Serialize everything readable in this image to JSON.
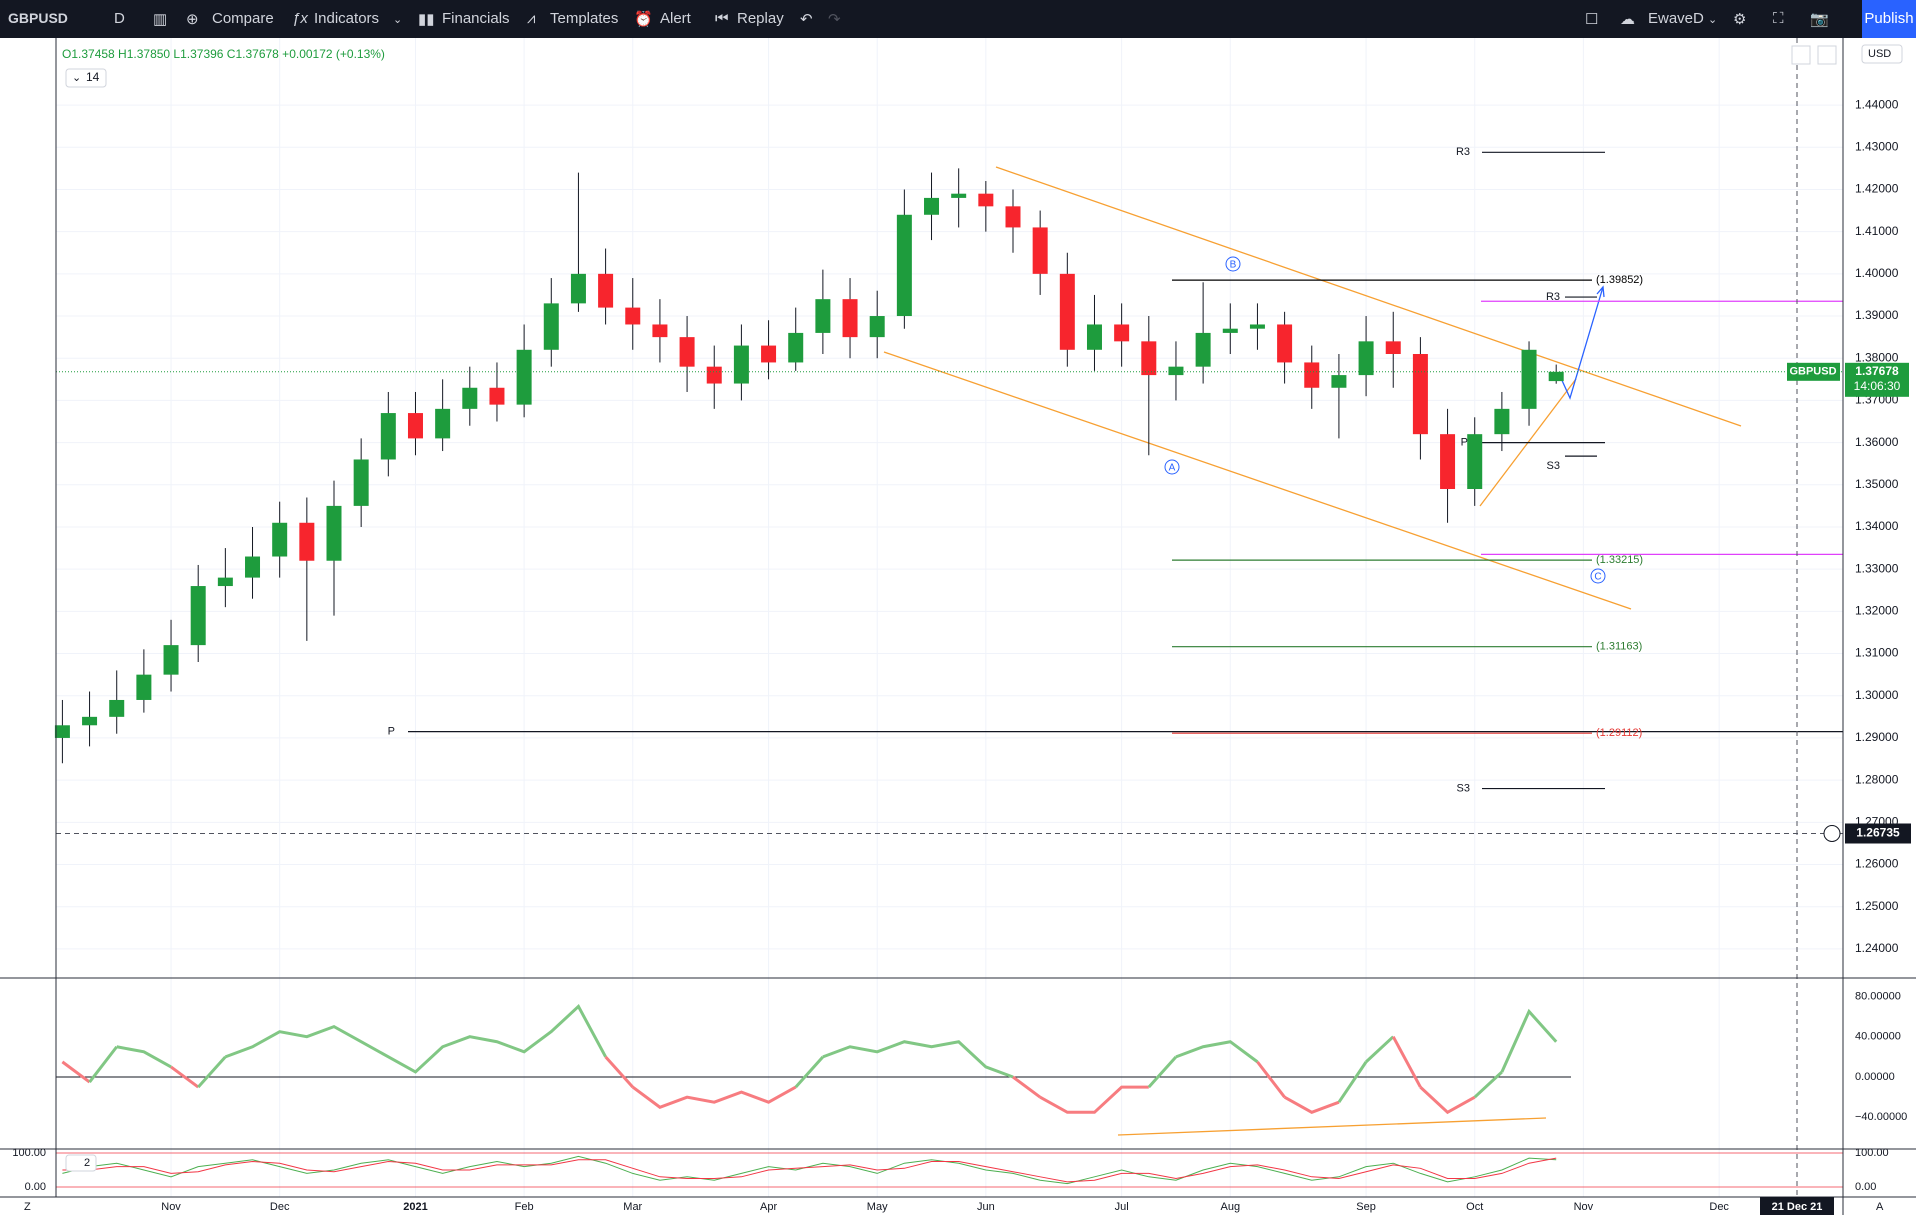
{
  "toolbar": {
    "symbol": "GBPUSD",
    "interval": "D",
    "compare": "Compare",
    "indicators": "Indicators",
    "financials": "Financials",
    "templates": "Templates",
    "alert": "Alert",
    "replay": "Replay",
    "layout": "EwaveD",
    "publish": "Publish",
    "currency": "USD"
  },
  "legend": {
    "ohlc": "O1.37458 H1.37850 L1.37396 C1.37678 +0.00172 (+0.13%)",
    "length": "14",
    "stoch_length": "2"
  },
  "chart_data": [
    {
      "type": "candlestick",
      "color_up": "#1e9c3d",
      "color_down": "#f7252d",
      "categories": [
        null,
        null,
        null,
        null,
        "Nov",
        null,
        null,
        null,
        "Dec",
        null,
        null,
        null,
        null,
        "2021",
        null,
        null,
        null,
        "Feb",
        null,
        null,
        null,
        "Mar",
        null,
        null,
        null,
        null,
        "Apr",
        null,
        null,
        null,
        "May",
        null,
        null,
        null,
        "Jun",
        null,
        null,
        null,
        null,
        "Jul",
        null,
        null,
        null,
        "Aug",
        null,
        null,
        null,
        null,
        "Sep",
        null,
        null,
        null,
        "Oct",
        null,
        null,
        null,
        "Nov",
        null,
        null,
        null,
        null,
        "Dec"
      ],
      "open": [
        1.29,
        1.293,
        1.295,
        1.299,
        1.305,
        1.312,
        1.326,
        1.328,
        1.333,
        1.341,
        1.332,
        1.345,
        1.356,
        1.367,
        1.361,
        1.368,
        1.373,
        1.369,
        1.382,
        1.393,
        1.4,
        1.392,
        1.388,
        1.385,
        1.378,
        1.374,
        1.383,
        1.379,
        1.386,
        1.394,
        1.385,
        1.39,
        1.414,
        1.418,
        1.419,
        1.416,
        1.411,
        1.4,
        1.382,
        1.388,
        1.384,
        1.376,
        1.378,
        1.386,
        1.387,
        1.388,
        1.379,
        1.373,
        1.376,
        1.384,
        1.381,
        1.362,
        1.349,
        1.362,
        1.368,
        1.37458,
        null,
        null,
        null,
        null,
        null,
        null
      ],
      "high": [
        1.299,
        1.301,
        1.306,
        1.311,
        1.318,
        1.331,
        1.335,
        1.34,
        1.346,
        1.347,
        1.351,
        1.361,
        1.372,
        1.372,
        1.375,
        1.378,
        1.379,
        1.388,
        1.399,
        1.424,
        1.406,
        1.399,
        1.394,
        1.39,
        1.383,
        1.388,
        1.389,
        1.392,
        1.401,
        1.399,
        1.396,
        1.42,
        1.424,
        1.425,
        1.422,
        1.42,
        1.415,
        1.405,
        1.395,
        1.393,
        1.39,
        1.384,
        1.398,
        1.393,
        1.393,
        1.391,
        1.383,
        1.381,
        1.39,
        1.391,
        1.385,
        1.368,
        1.366,
        1.372,
        1.384,
        1.3785,
        null,
        null,
        null,
        null,
        null,
        null
      ],
      "low": [
        1.284,
        1.288,
        1.291,
        1.296,
        1.301,
        1.308,
        1.321,
        1.323,
        1.328,
        1.313,
        1.319,
        1.34,
        1.352,
        1.357,
        1.358,
        1.364,
        1.365,
        1.366,
        1.378,
        1.391,
        1.388,
        1.382,
        1.379,
        1.372,
        1.368,
        1.37,
        1.375,
        1.377,
        1.381,
        1.38,
        1.38,
        1.387,
        1.408,
        1.411,
        1.41,
        1.405,
        1.395,
        1.378,
        1.377,
        1.378,
        1.357,
        1.37,
        1.374,
        1.381,
        1.382,
        1.374,
        1.368,
        1.361,
        1.371,
        1.373,
        1.356,
        1.341,
        1.345,
        1.358,
        1.364,
        1.37396,
        null,
        null,
        null,
        null,
        null,
        null
      ],
      "close": [
        1.293,
        1.295,
        1.299,
        1.305,
        1.312,
        1.326,
        1.328,
        1.333,
        1.341,
        1.332,
        1.345,
        1.356,
        1.367,
        1.361,
        1.368,
        1.373,
        1.369,
        1.382,
        1.393,
        1.4,
        1.392,
        1.388,
        1.385,
        1.378,
        1.374,
        1.383,
        1.379,
        1.386,
        1.394,
        1.385,
        1.39,
        1.414,
        1.418,
        1.419,
        1.416,
        1.411,
        1.4,
        1.382,
        1.388,
        1.384,
        1.376,
        1.378,
        1.386,
        1.387,
        1.388,
        1.379,
        1.373,
        1.376,
        1.384,
        1.381,
        1.362,
        1.349,
        1.362,
        1.368,
        1.382,
        1.37678,
        null,
        null,
        null,
        null,
        null,
        null
      ],
      "ylim": [
        1.2331,
        1.4559
      ],
      "yticks": [
        {
          "value": 1.24,
          "label": "1.24000"
        },
        {
          "value": 1.25,
          "label": "1.25000"
        },
        {
          "value": 1.26,
          "label": "1.26000"
        },
        {
          "value": 1.27,
          "label": "1.27000"
        },
        {
          "value": 1.28,
          "label": "1.28000"
        },
        {
          "value": 1.29,
          "label": "1.29000"
        },
        {
          "value": 1.3,
          "label": "1.30000"
        },
        {
          "value": 1.31,
          "label": "1.31000"
        },
        {
          "value": 1.32,
          "label": "1.32000"
        },
        {
          "value": 1.33,
          "label": "1.33000"
        },
        {
          "value": 1.34,
          "label": "1.34000"
        },
        {
          "value": 1.35,
          "label": "1.35000"
        },
        {
          "value": 1.36,
          "label": "1.36000"
        },
        {
          "value": 1.37,
          "label": "1.37000"
        },
        {
          "value": 1.38,
          "label": "1.38000"
        },
        {
          "value": 1.39,
          "label": "1.39000"
        },
        {
          "value": 1.4,
          "label": "1.40000"
        },
        {
          "value": 1.41,
          "label": "1.41000"
        },
        {
          "value": 1.42,
          "label": "1.42000"
        },
        {
          "value": 1.43,
          "label": "1.43000"
        },
        {
          "value": 1.44,
          "label": "1.44000"
        }
      ],
      "grid": true,
      "last_price": {
        "value": 1.37678,
        "label": "1.37678",
        "countdown": "14:06:30"
      },
      "crosshair": {
        "value": 1.26735,
        "label": "1.26735",
        "date": "21 Dec 21"
      },
      "levels": [
        {
          "value": 1.39852,
          "label": "(1.39852)",
          "color": "#000000"
        },
        {
          "value": 1.33215,
          "label": "(1.33215)",
          "color": "#2e7d32"
        },
        {
          "value": 1.31163,
          "label": "(1.31163)",
          "color": "#2e7d32"
        },
        {
          "value": 1.29112,
          "label": "(1.29112)",
          "color": "#e53935"
        }
      ],
      "pivots": [
        {
          "label": "R3",
          "value": 1.4288
        },
        {
          "label": "P",
          "value": 1.2915
        },
        {
          "label": "S3",
          "value": 1.278
        },
        {
          "label": "R3",
          "value": 1.3945
        },
        {
          "label": "S3",
          "value": 1.3568
        },
        {
          "label": "P",
          "value": 1.36
        }
      ],
      "hlines": [
        {
          "value": 1.3935,
          "color": "#e040fb"
        },
        {
          "value": 1.3335,
          "color": "#e040fb"
        }
      ],
      "waves": [
        "A",
        "B",
        "C"
      ]
    },
    {
      "type": "line",
      "color_up": "#81c784",
      "color_down": "#f77c80",
      "values": [
        15,
        -5,
        30,
        25,
        10,
        -10,
        20,
        30,
        45,
        40,
        50,
        35,
        20,
        5,
        30,
        40,
        35,
        25,
        45,
        70,
        20,
        -10,
        -30,
        -20,
        -25,
        -15,
        -25,
        -10,
        20,
        30,
        25,
        35,
        30,
        35,
        10,
        0,
        -20,
        -35,
        -35,
        -10,
        -10,
        20,
        30,
        35,
        15,
        -20,
        -35,
        -25,
        15,
        40,
        -10,
        -35,
        -20,
        5,
        65,
        35,
        null,
        null,
        null,
        null,
        null,
        null
      ],
      "ylim": [
        -71.4,
        98.2
      ],
      "yticks": [
        {
          "value": 80,
          "label": "80.00000"
        },
        {
          "value": 40,
          "label": "40.00000"
        },
        {
          "value": 0,
          "label": "0.00000"
        },
        {
          "value": -40,
          "label": "−40.00000"
        }
      ]
    },
    {
      "type": "line",
      "series": [
        {
          "color": "#4caf50",
          "values": [
            40,
            60,
            70,
            50,
            30,
            60,
            70,
            80,
            60,
            40,
            50,
            70,
            80,
            60,
            40,
            60,
            75,
            60,
            70,
            90,
            70,
            40,
            20,
            30,
            20,
            40,
            60,
            50,
            70,
            60,
            40,
            70,
            80,
            70,
            50,
            40,
            20,
            10,
            30,
            50,
            30,
            20,
            50,
            70,
            60,
            40,
            20,
            30,
            60,
            70,
            40,
            15,
            30,
            50,
            85,
            80,
            null,
            null,
            null,
            null,
            null,
            null
          ]
        },
        {
          "color": "#f23645",
          "values": [
            50,
            50,
            60,
            60,
            40,
            45,
            65,
            75,
            70,
            50,
            45,
            60,
            75,
            70,
            50,
            50,
            65,
            65,
            65,
            80,
            80,
            55,
            30,
            25,
            25,
            30,
            50,
            55,
            60,
            65,
            50,
            55,
            75,
            75,
            60,
            45,
            30,
            15,
            20,
            40,
            40,
            25,
            40,
            60,
            65,
            50,
            30,
            25,
            45,
            65,
            55,
            25,
            25,
            40,
            70,
            85,
            null,
            null,
            null,
            null,
            null,
            null
          ]
        }
      ],
      "ylim": [
        -29.4,
        111.8
      ],
      "yticks": [
        {
          "value": 100,
          "label": "100.00"
        },
        {
          "value": 0,
          "label": "0.00"
        }
      ]
    }
  ]
}
